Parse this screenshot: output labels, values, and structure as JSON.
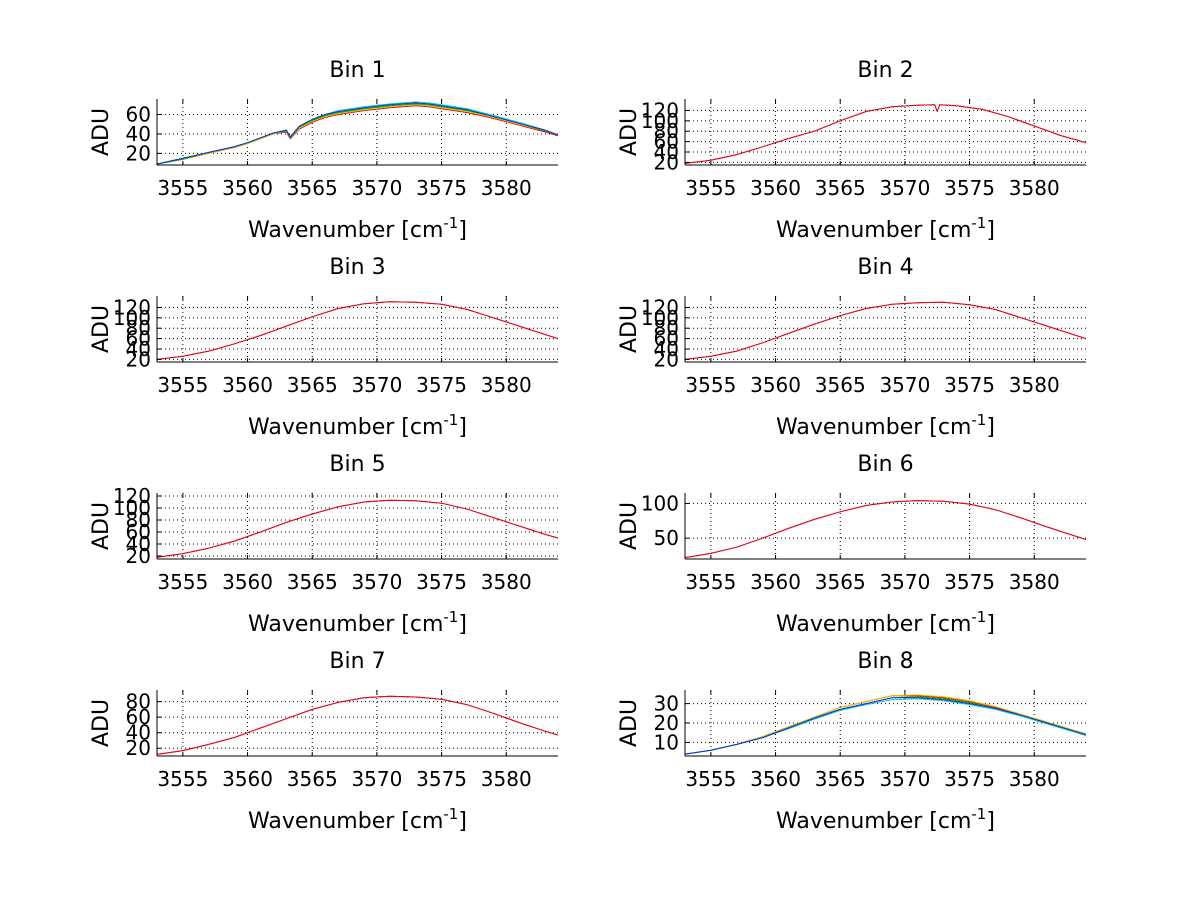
{
  "chart_data": [
    {
      "type": "line",
      "title": "Bin 1",
      "xlabel": "Wavenumber [cm",
      "xlabel_superscript": "-1",
      "xlabel_suffix": "]",
      "ylabel": "ADU",
      "xlim": [
        3553,
        3584
      ],
      "ylim": [
        8,
        76
      ],
      "xticks": [
        3555,
        3560,
        3565,
        3570,
        3575,
        3580
      ],
      "xtick_labels": [
        "3555",
        "3560",
        "3565",
        "3570",
        "3575",
        "3580"
      ],
      "yticks": [
        20,
        40,
        60
      ],
      "ytick_labels": [
        "20",
        "40",
        "60"
      ],
      "grid": true,
      "x": [
        3553,
        3555,
        3557,
        3559,
        3560,
        3561,
        3562,
        3563,
        3563.3,
        3564,
        3565,
        3566,
        3567,
        3569,
        3571,
        3573,
        3574,
        3575,
        3577,
        3579,
        3581,
        3583,
        3584
      ],
      "series": [
        {
          "name": "red",
          "color": "#ff0000",
          "values": [
            9,
            14,
            20,
            26,
            30,
            35,
            40,
            42,
            35,
            45,
            52,
            57,
            60,
            64,
            67,
            69,
            68,
            66,
            62,
            56,
            49,
            42,
            38
          ]
        },
        {
          "name": "yellow",
          "color": "#e8c000",
          "values": [
            9,
            14,
            20,
            26,
            30,
            35,
            40,
            43,
            36,
            46,
            53,
            58,
            61,
            65,
            68,
            70,
            69,
            67,
            63,
            57,
            50,
            43,
            39
          ]
        },
        {
          "name": "green",
          "color": "#00b000",
          "values": [
            9,
            14,
            21,
            27,
            31,
            36,
            41,
            43,
            36,
            47,
            54,
            59,
            62,
            66,
            69,
            71,
            70,
            68,
            64,
            58,
            51,
            43,
            39
          ]
        },
        {
          "name": "cyan",
          "color": "#00c8e0",
          "values": [
            9,
            15,
            21,
            27,
            31,
            36,
            41,
            44,
            37,
            48,
            55,
            60,
            64,
            68,
            71,
            73,
            72,
            70,
            66,
            59,
            52,
            44,
            39
          ]
        },
        {
          "name": "blue",
          "color": "#1030d0",
          "values": [
            9,
            15,
            21,
            27,
            31,
            36,
            41,
            44,
            37,
            48,
            55,
            60,
            63,
            67,
            70,
            72,
            71,
            69,
            65,
            58,
            51,
            44,
            39
          ]
        }
      ]
    },
    {
      "type": "line",
      "title": "Bin 2",
      "xlabel": "Wavenumber [cm",
      "xlabel_superscript": "-1",
      "xlabel_suffix": "]",
      "ylabel": "ADU",
      "xlim": [
        3553,
        3584
      ],
      "ylim": [
        15,
        142
      ],
      "xticks": [
        3555,
        3560,
        3565,
        3570,
        3575,
        3580
      ],
      "xtick_labels": [
        "3555",
        "3560",
        "3565",
        "3570",
        "3575",
        "3580"
      ],
      "yticks": [
        20,
        40,
        60,
        80,
        100,
        120
      ],
      "ytick_labels": [
        "20",
        "40",
        "60",
        "80",
        "100",
        "120"
      ],
      "grid": true,
      "x": [
        3553,
        3555,
        3557,
        3559,
        3561,
        3563,
        3565,
        3567,
        3569,
        3571,
        3572.3,
        3572.5,
        3572.7,
        3574,
        3576,
        3578,
        3580,
        3582,
        3584
      ],
      "series": [
        {
          "name": "blue",
          "color": "#1030d0",
          "values": [
            18,
            24,
            35,
            50,
            66,
            80,
            100,
            118,
            127,
            130,
            131,
            118,
            131,
            129,
            122,
            108,
            90,
            72,
            58
          ]
        },
        {
          "name": "red",
          "color": "#ff0000",
          "values": [
            18,
            24,
            35,
            50,
            66,
            80,
            100,
            118,
            127,
            130,
            131,
            118,
            131,
            129,
            122,
            108,
            90,
            72,
            58
          ]
        }
      ]
    },
    {
      "type": "line",
      "title": "Bin 3",
      "xlabel": "Wavenumber [cm",
      "xlabel_superscript": "-1",
      "xlabel_suffix": "]",
      "ylabel": "ADU",
      "xlim": [
        3553,
        3584
      ],
      "ylim": [
        15,
        142
      ],
      "xticks": [
        3555,
        3560,
        3565,
        3570,
        3575,
        3580
      ],
      "xtick_labels": [
        "3555",
        "3560",
        "3565",
        "3570",
        "3575",
        "3580"
      ],
      "yticks": [
        20,
        40,
        60,
        80,
        100,
        120
      ],
      "ytick_labels": [
        "20",
        "40",
        "60",
        "80",
        "100",
        "120"
      ],
      "grid": true,
      "x": [
        3553,
        3555,
        3557,
        3559,
        3561,
        3563,
        3565,
        3567,
        3569,
        3571,
        3573,
        3575,
        3577,
        3579,
        3581,
        3583,
        3584
      ],
      "series": [
        {
          "name": "blue",
          "color": "#1030d0",
          "values": [
            20,
            26,
            36,
            50,
            66,
            84,
            102,
            118,
            127,
            131,
            130,
            126,
            116,
            100,
            84,
            68,
            60
          ]
        },
        {
          "name": "red",
          "color": "#ff0000",
          "values": [
            20,
            26,
            36,
            50,
            66,
            84,
            102,
            118,
            127,
            131,
            130,
            126,
            116,
            100,
            84,
            68,
            60
          ]
        }
      ]
    },
    {
      "type": "line",
      "title": "Bin 4",
      "xlabel": "Wavenumber [cm",
      "xlabel_superscript": "-1",
      "xlabel_suffix": "]",
      "ylabel": "ADU",
      "xlim": [
        3553,
        3584
      ],
      "ylim": [
        15,
        142
      ],
      "xticks": [
        3555,
        3560,
        3565,
        3570,
        3575,
        3580
      ],
      "xtick_labels": [
        "3555",
        "3560",
        "3565",
        "3570",
        "3575",
        "3580"
      ],
      "yticks": [
        20,
        40,
        60,
        80,
        100,
        120
      ],
      "ytick_labels": [
        "20",
        "40",
        "60",
        "80",
        "100",
        "120"
      ],
      "grid": true,
      "x": [
        3553,
        3555,
        3557,
        3559,
        3561,
        3563,
        3565,
        3567,
        3569,
        3571,
        3573,
        3575,
        3577,
        3579,
        3581,
        3583,
        3584
      ],
      "series": [
        {
          "name": "blue",
          "color": "#1030d0",
          "values": [
            20,
            26,
            36,
            52,
            70,
            88,
            104,
            118,
            126,
            129,
            130,
            125,
            116,
            100,
            84,
            68,
            60
          ]
        },
        {
          "name": "red",
          "color": "#ff0000",
          "values": [
            20,
            26,
            36,
            52,
            70,
            88,
            104,
            118,
            126,
            129,
            130,
            125,
            116,
            100,
            84,
            68,
            60
          ]
        }
      ]
    },
    {
      "type": "line",
      "title": "Bin 5",
      "xlabel": "Wavenumber [cm",
      "xlabel_superscript": "-1",
      "xlabel_suffix": "]",
      "ylabel": "ADU",
      "xlim": [
        3553,
        3584
      ],
      "ylim": [
        15,
        125
      ],
      "xticks": [
        3555,
        3560,
        3565,
        3570,
        3575,
        3580
      ],
      "xtick_labels": [
        "3555",
        "3560",
        "3565",
        "3570",
        "3575",
        "3580"
      ],
      "yticks": [
        20,
        40,
        60,
        80,
        100,
        120
      ],
      "ytick_labels": [
        "20",
        "40",
        "60",
        "80",
        "100",
        "120"
      ],
      "grid": true,
      "x": [
        3553,
        3555,
        3557,
        3559,
        3561,
        3563,
        3565,
        3567,
        3569,
        3571,
        3573,
        3575,
        3577,
        3579,
        3581,
        3583,
        3584
      ],
      "series": [
        {
          "name": "blue",
          "color": "#1030d0",
          "values": [
            18,
            24,
            33,
            45,
            60,
            76,
            90,
            102,
            110,
            113,
            112,
            108,
            98,
            84,
            70,
            56,
            50
          ]
        },
        {
          "name": "red",
          "color": "#ff0000",
          "values": [
            18,
            24,
            33,
            45,
            60,
            76,
            90,
            102,
            110,
            113,
            112,
            108,
            98,
            84,
            70,
            56,
            50
          ]
        }
      ]
    },
    {
      "type": "line",
      "title": "Bin 6",
      "xlabel": "Wavenumber [cm",
      "xlabel_superscript": "-1",
      "xlabel_suffix": "]",
      "ylabel": "ADU",
      "xlim": [
        3553,
        3584
      ],
      "ylim": [
        20,
        115
      ],
      "xticks": [
        3555,
        3560,
        3565,
        3570,
        3575,
        3580
      ],
      "xtick_labels": [
        "3555",
        "3560",
        "3565",
        "3570",
        "3575",
        "3580"
      ],
      "yticks": [
        50,
        100
      ],
      "ytick_labels": [
        "50",
        "100"
      ],
      "grid": true,
      "x": [
        3553,
        3555,
        3557,
        3559,
        3561,
        3563,
        3565,
        3567,
        3569,
        3571,
        3573,
        3575,
        3577,
        3579,
        3581,
        3583,
        3584
      ],
      "series": [
        {
          "name": "blue",
          "color": "#1030d0",
          "values": [
            22,
            28,
            37,
            50,
            64,
            77,
            88,
            97,
            102,
            104,
            103,
            99,
            91,
            79,
            66,
            54,
            48
          ]
        },
        {
          "name": "red",
          "color": "#ff0000",
          "values": [
            22,
            28,
            37,
            50,
            64,
            77,
            88,
            97,
            102,
            104,
            103,
            99,
            91,
            79,
            66,
            54,
            48
          ]
        }
      ]
    },
    {
      "type": "line",
      "title": "Bin 7",
      "xlabel": "Wavenumber [cm",
      "xlabel_superscript": "-1",
      "xlabel_suffix": "]",
      "ylabel": "ADU",
      "xlim": [
        3553,
        3584
      ],
      "ylim": [
        10,
        95
      ],
      "xticks": [
        3555,
        3560,
        3565,
        3570,
        3575,
        3580
      ],
      "xtick_labels": [
        "3555",
        "3560",
        "3565",
        "3570",
        "3575",
        "3580"
      ],
      "yticks": [
        20,
        40,
        60,
        80
      ],
      "ytick_labels": [
        "20",
        "40",
        "60",
        "80"
      ],
      "grid": true,
      "x": [
        3553,
        3555,
        3557,
        3559,
        3561,
        3563,
        3565,
        3567,
        3569,
        3571,
        3573,
        3575,
        3577,
        3579,
        3581,
        3583,
        3584
      ],
      "series": [
        {
          "name": "blue",
          "color": "#1030d0",
          "values": [
            12,
            17,
            25,
            34,
            46,
            58,
            70,
            79,
            85,
            87,
            86,
            83,
            76,
            65,
            53,
            42,
            37
          ]
        },
        {
          "name": "red",
          "color": "#ff0000",
          "values": [
            12,
            17,
            25,
            34,
            46,
            58,
            70,
            79,
            85,
            87,
            86,
            83,
            76,
            65,
            53,
            42,
            37
          ]
        }
      ]
    },
    {
      "type": "line",
      "title": "Bin 8",
      "xlabel": "Wavenumber [cm",
      "xlabel_superscript": "-1",
      "xlabel_suffix": "]",
      "ylabel": "ADU",
      "xlim": [
        3553,
        3584
      ],
      "ylim": [
        3,
        37
      ],
      "xticks": [
        3555,
        3560,
        3565,
        3570,
        3575,
        3580
      ],
      "xtick_labels": [
        "3555",
        "3560",
        "3565",
        "3570",
        "3575",
        "3580"
      ],
      "yticks": [
        10,
        20,
        30
      ],
      "ytick_labels": [
        "10",
        "20",
        "30"
      ],
      "grid": true,
      "x": [
        3553,
        3555,
        3557,
        3559,
        3561,
        3563,
        3565,
        3567,
        3569,
        3571,
        3573,
        3575,
        3577,
        3579,
        3581,
        3583,
        3584
      ],
      "series": [
        {
          "name": "red",
          "color": "#ff0000",
          "values": [
            4,
            6,
            9,
            13,
            18,
            23,
            28,
            31,
            34,
            34,
            33,
            31,
            28,
            24,
            20,
            16,
            14
          ]
        },
        {
          "name": "yellow",
          "color": "#e8c000",
          "values": [
            4,
            6,
            9,
            13,
            18,
            23,
            28,
            31,
            34,
            34.5,
            33.5,
            31.5,
            28.5,
            24.5,
            20.5,
            16.5,
            14.5
          ]
        },
        {
          "name": "green",
          "color": "#00b000",
          "values": [
            4,
            6,
            9,
            12.5,
            17.5,
            22.5,
            27,
            30,
            33,
            33.5,
            32.5,
            30.5,
            27.5,
            24,
            20,
            16,
            14
          ]
        },
        {
          "name": "cyan",
          "color": "#00c8e0",
          "values": [
            4,
            6,
            9,
            12.5,
            17,
            22,
            26.5,
            29.5,
            32,
            32.5,
            31.5,
            29.5,
            27,
            23.5,
            19.5,
            15.5,
            13.5
          ]
        },
        {
          "name": "blue",
          "color": "#1030d0",
          "values": [
            4,
            6,
            9,
            12.5,
            17.5,
            22.5,
            27,
            30,
            33,
            33,
            32,
            30,
            27.5,
            24,
            20,
            16,
            14
          ]
        }
      ]
    }
  ]
}
